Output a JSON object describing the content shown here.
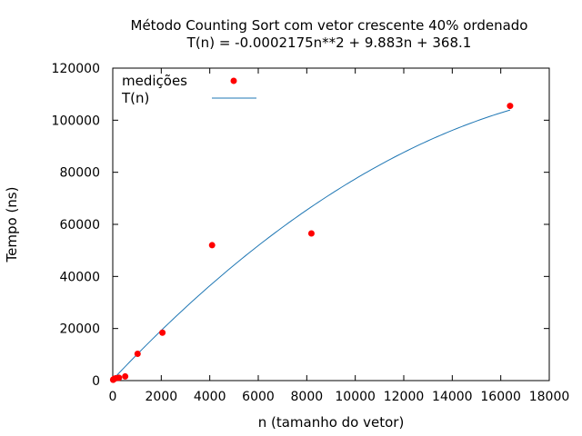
{
  "chart_data": {
    "type": "scatter",
    "title": "Método Counting Sort com vetor crescente 40% ordenado",
    "subtitle": "T(n) = -0.0002175n**2 + 9.883n + 368.1",
    "xlabel": "n (tamanho do vetor)",
    "ylabel": "Tempo (ns)",
    "xlim": [
      0,
      18000
    ],
    "ylim": [
      0,
      120000
    ],
    "xticks": [
      0,
      2000,
      4000,
      6000,
      8000,
      10000,
      12000,
      14000,
      16000,
      18000
    ],
    "yticks": [
      0,
      20000,
      40000,
      60000,
      80000,
      100000,
      120000
    ],
    "grid": false,
    "legend_position": "top-left",
    "series": [
      {
        "name": "medições",
        "kind": "points",
        "color": "#ff0000",
        "x": [
          16,
          32,
          64,
          128,
          256,
          512,
          1024,
          2048,
          4096,
          8192,
          16384
        ],
        "y": [
          300,
          500,
          700,
          900,
          1100,
          1600,
          10300,
          18400,
          52000,
          56500,
          105500
        ]
      },
      {
        "name": "T(n)",
        "kind": "curve",
        "color": "#1f77b4",
        "coefficients": {
          "a": -0.0002175,
          "b": 9.883,
          "c": 368.1
        },
        "x_range": [
          0,
          16384
        ]
      }
    ]
  }
}
